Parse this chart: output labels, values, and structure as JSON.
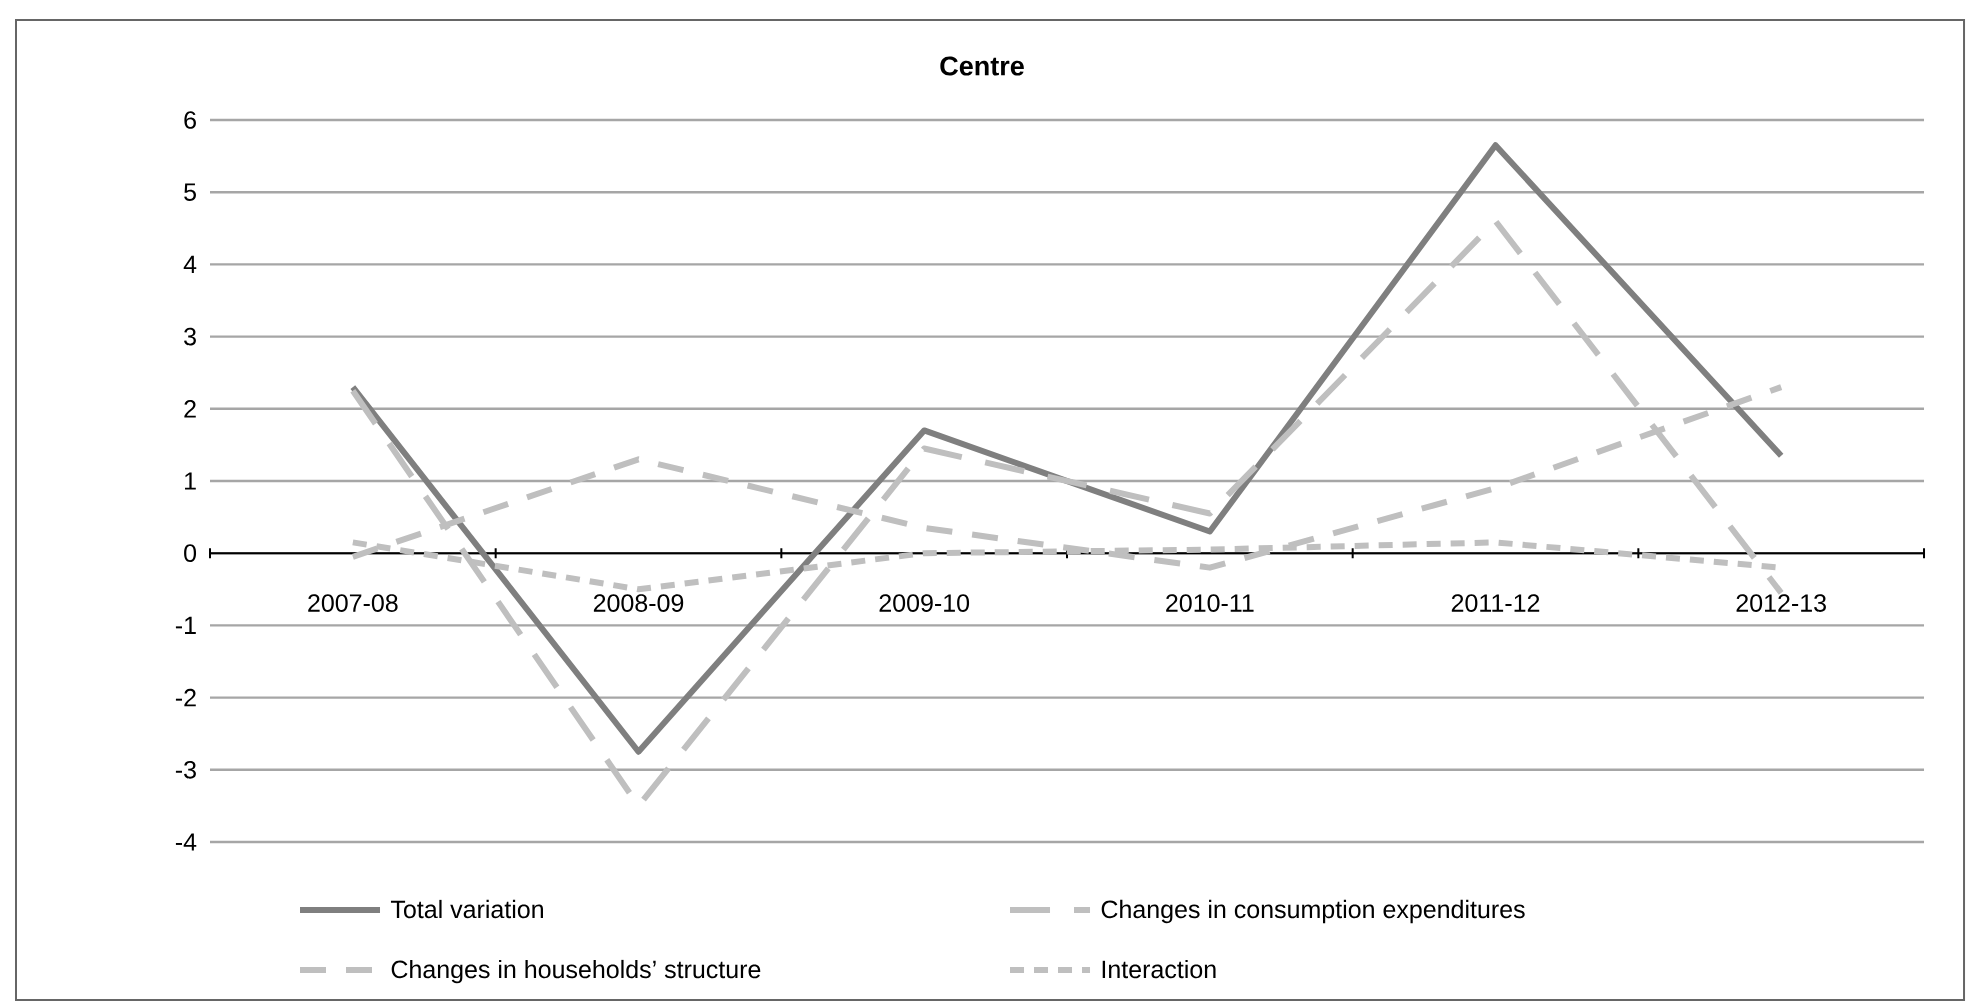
{
  "chart_data": {
    "type": "line",
    "title": "Centre",
    "categories": [
      "2007-08",
      "2008-09",
      "2009-10",
      "2010-11",
      "2011-12",
      "2012-13"
    ],
    "series": [
      {
        "name": "Total variation",
        "color": "#7f7f7f",
        "line_style": "solid",
        "values": [
          2.3,
          -2.75,
          1.7,
          0.3,
          5.65,
          1.35
        ]
      },
      {
        "name": "Changes in consumption expenditures",
        "color": "#bfbfbf",
        "line_style": "longdash",
        "values": [
          2.25,
          -3.5,
          1.45,
          0.55,
          4.6,
          -0.55
        ]
      },
      {
        "name": "Changes in households’ structure",
        "color": "#bfbfbf",
        "line_style": "dashed",
        "values": [
          -0.05,
          1.3,
          0.35,
          -0.2,
          0.9,
          2.3
        ]
      },
      {
        "name": "Interaction",
        "color": "#bfbfbf",
        "line_style": "dotted",
        "values": [
          0.15,
          -0.5,
          0.0,
          0.05,
          0.15,
          -0.2
        ]
      }
    ],
    "ylim": [
      -4,
      6
    ],
    "yticks": [
      -4,
      -3,
      -2,
      -1,
      0,
      1,
      2,
      3,
      4,
      5,
      6
    ],
    "grid": "y",
    "legend": "bottom",
    "marker": "none"
  }
}
